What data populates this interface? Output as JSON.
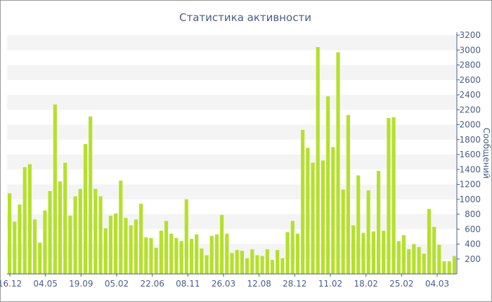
{
  "chart_data": {
    "type": "bar",
    "title": "Статистика активности",
    "ylabel": "Сообщений",
    "ylim": [
      0,
      3200
    ],
    "yticks": [
      200,
      400,
      600,
      800,
      1000,
      1200,
      1400,
      1600,
      1800,
      2000,
      2200,
      2400,
      2600,
      2800,
      3000,
      3200
    ],
    "x_tick_labels": [
      "16.12",
      "04.05",
      "19.09",
      "05.02",
      "22.06",
      "08.11",
      "26.03",
      "12.08",
      "28.12",
      "11.02",
      "18.02",
      "25.02",
      "04.03"
    ],
    "grid": "horizontal bands",
    "colors": {
      "bar": "#b5e02b",
      "highlight": "#e45a57",
      "text": "#4a5d8a"
    },
    "values": [
      1080,
      700,
      930,
      1430,
      1470,
      730,
      420,
      850,
      1110,
      2270,
      1240,
      1490,
      780,
      1040,
      1140,
      1740,
      2110,
      1140,
      1040,
      610,
      780,
      810,
      1250,
      750,
      650,
      730,
      940,
      490,
      480,
      350,
      580,
      710,
      540,
      480,
      440,
      1000,
      470,
      530,
      340,
      250,
      510,
      530,
      790,
      540,
      280,
      320,
      310,
      210,
      330,
      250,
      240,
      330,
      190,
      320,
      210,
      560,
      710,
      540,
      1930,
      1690,
      1490,
      3040,
      1520,
      2380,
      1700,
      2970,
      1130,
      2130,
      650,
      1320,
      550,
      1120,
      570,
      1380,
      580,
      2090,
      2100,
      440,
      520,
      330,
      400,
      360,
      270,
      870,
      630,
      390,
      170,
      170,
      240
    ],
    "highlight": {
      "index": 89,
      "value": 240
    }
  }
}
